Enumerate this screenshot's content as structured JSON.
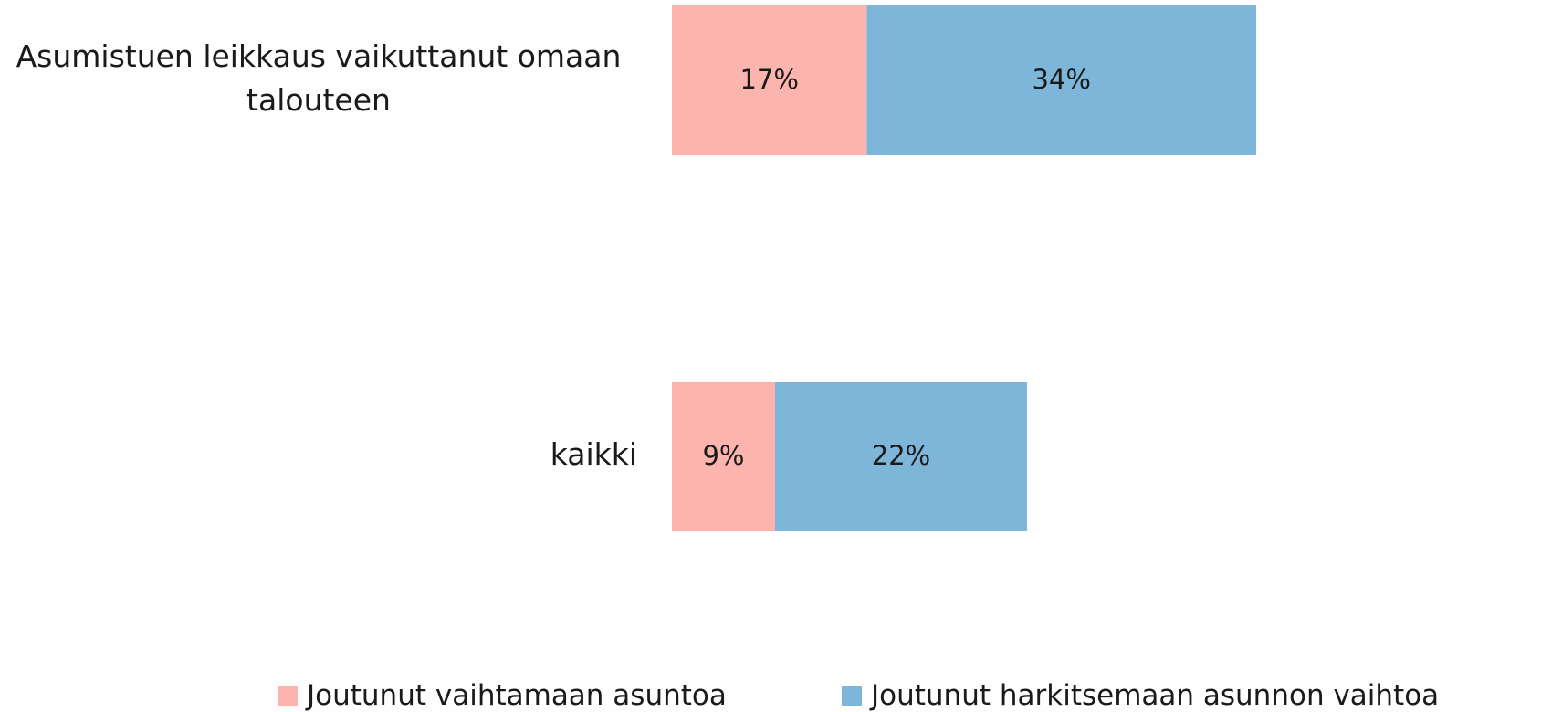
{
  "chart_data": {
    "type": "stacked-bar-horizontal",
    "categories": [
      "Asumistuen leikkaus vaikuttanut omaan talouteen",
      "kaikki"
    ],
    "series": [
      {
        "name": "Joutunut vaihtamaan asuntoa",
        "color": "#fbb4ae",
        "values": [
          17,
          9
        ],
        "value_labels": [
          "17%",
          "9%"
        ]
      },
      {
        "name": "Joutunut harkitsemaan asunnon vaihtoa",
        "color": "#7eb6da",
        "values": [
          34,
          22
        ],
        "value_labels": [
          "34%",
          "22%"
        ]
      }
    ],
    "legend": "bottom"
  }
}
